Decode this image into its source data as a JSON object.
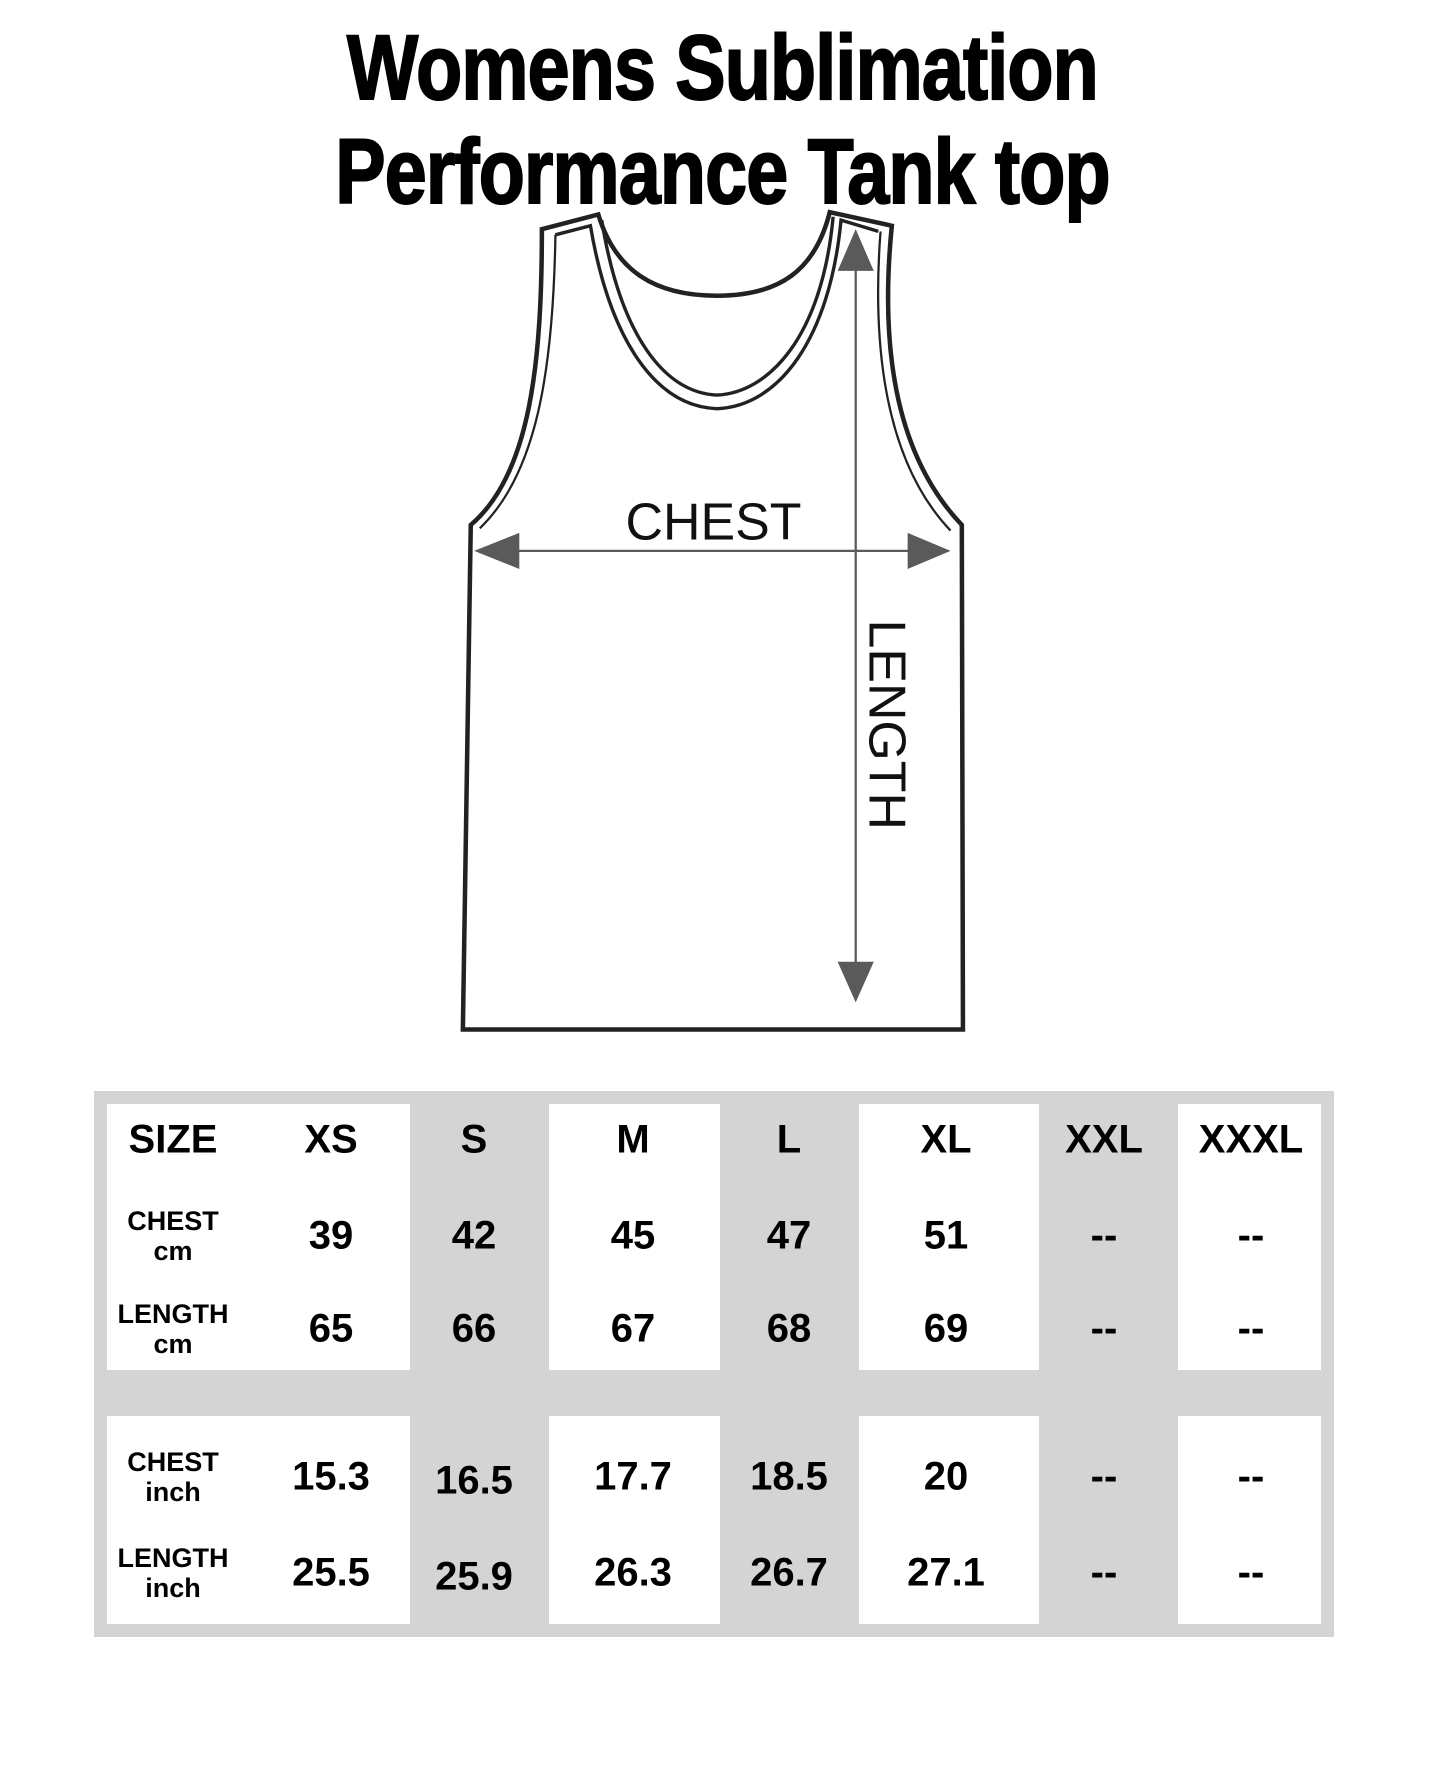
{
  "title": {
    "line1": "Womens Sublimation",
    "line2": "Performance Tank top"
  },
  "diagram": {
    "chest_label": "CHEST",
    "length_label": "LENGTH"
  },
  "table": {
    "header": [
      "SIZE",
      "XS",
      "S",
      "M",
      "L",
      "XL",
      "XXL",
      "XXXL"
    ],
    "rows": [
      {
        "label1": "CHEST",
        "label2": "cm",
        "values": [
          "39",
          "42",
          "45",
          "47",
          "51",
          "--",
          "--"
        ]
      },
      {
        "label1": "LENGTH",
        "label2": "cm",
        "values": [
          "65",
          "66",
          "67",
          "68",
          "69",
          "--",
          "--"
        ]
      },
      {
        "label1": "CHEST",
        "label2": "inch",
        "values": [
          "15.3",
          "16.5",
          "17.7",
          "18.5",
          "20",
          "--",
          "--"
        ]
      },
      {
        "label1": "LENGTH",
        "label2": "inch",
        "values": [
          "25.5",
          "25.9",
          "26.3",
          "26.7",
          "27.1",
          "--",
          "--"
        ]
      }
    ]
  },
  "colors": {
    "table_background": "#d4d4d4",
    "arrow": "#5a5a5a"
  }
}
